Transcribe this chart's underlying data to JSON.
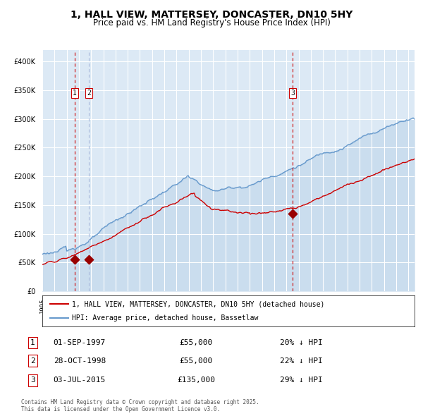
{
  "title": "1, HALL VIEW, MATTERSEY, DONCASTER, DN10 5HY",
  "subtitle": "Price paid vs. HM Land Registry's House Price Index (HPI)",
  "legend_property": "1, HALL VIEW, MATTERSEY, DONCASTER, DN10 5HY (detached house)",
  "legend_hpi": "HPI: Average price, detached house, Bassetlaw",
  "footer": "Contains HM Land Registry data © Crown copyright and database right 2025.\nThis data is licensed under the Open Government Licence v3.0.",
  "sales": [
    {
      "num": 1,
      "date": "01-SEP-1997",
      "price": 55000,
      "hpi_diff": "20% ↓ HPI"
    },
    {
      "num": 2,
      "date": "28-OCT-1998",
      "price": 55000,
      "hpi_diff": "22% ↓ HPI"
    },
    {
      "num": 3,
      "date": "03-JUL-2015",
      "price": 135000,
      "hpi_diff": "29% ↓ HPI"
    }
  ],
  "sale_dates_decimal": [
    1997.667,
    1998.833,
    2015.5
  ],
  "ylim": [
    0,
    420000
  ],
  "yticks": [
    0,
    50000,
    100000,
    150000,
    200000,
    250000,
    300000,
    350000,
    400000
  ],
  "xlim_start": 1995.0,
  "xlim_end": 2025.5,
  "bg_color": "#dce9f5",
  "plot_bg_color": "#dce9f5",
  "red_line_color": "#cc0000",
  "blue_line_color": "#6699cc",
  "vline_color_1": "#cc0000",
  "vline_color_2": "#aabbdd",
  "grid_color": "#ffffff",
  "marker_color": "#990000"
}
